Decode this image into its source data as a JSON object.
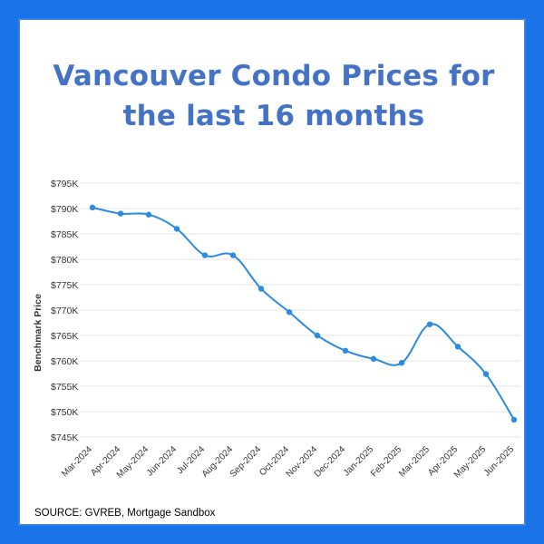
{
  "title_line1": "Vancouver Condo Prices for",
  "title_line2": "the last 16 months",
  "source": "SOURCE: GVREB, Mortgage Sandbox",
  "colors": {
    "background": "#1a73e8",
    "title": "#4472c4",
    "line": "#2a8be0",
    "grid": "#e6e6e6"
  },
  "chart_data": {
    "type": "line",
    "title": "Vancouver Condo Prices for the last 16 months",
    "xlabel": "",
    "ylabel": "Benchmark Price",
    "ylim": [
      745000,
      795000
    ],
    "yticks": [
      745000,
      750000,
      755000,
      760000,
      765000,
      770000,
      775000,
      780000,
      785000,
      790000,
      795000
    ],
    "ytick_labels": [
      "$745K",
      "$750K",
      "$755K",
      "$760K",
      "$765K",
      "$770K",
      "$775K",
      "$780K",
      "$785K",
      "$790K",
      "$795K"
    ],
    "grid": true,
    "categories": [
      "Mar-2024",
      "Apr-2024",
      "May-2024",
      "Jun-2024",
      "Jul-2024",
      "Aug-2024",
      "Sep-2024",
      "Oct-2024",
      "Nov-2024",
      "Dec-2024",
      "Jan-2025",
      "Feb-2025",
      "Mar-2025",
      "Apr-2025",
      "May-2025",
      "Jun-2025"
    ],
    "series": [
      {
        "values": [
          790200,
          789000,
          788800,
          786000,
          780800,
          780800,
          774200,
          769600,
          765000,
          762000,
          760400,
          759600,
          767200,
          762800,
          757400,
          748400
        ]
      }
    ]
  }
}
